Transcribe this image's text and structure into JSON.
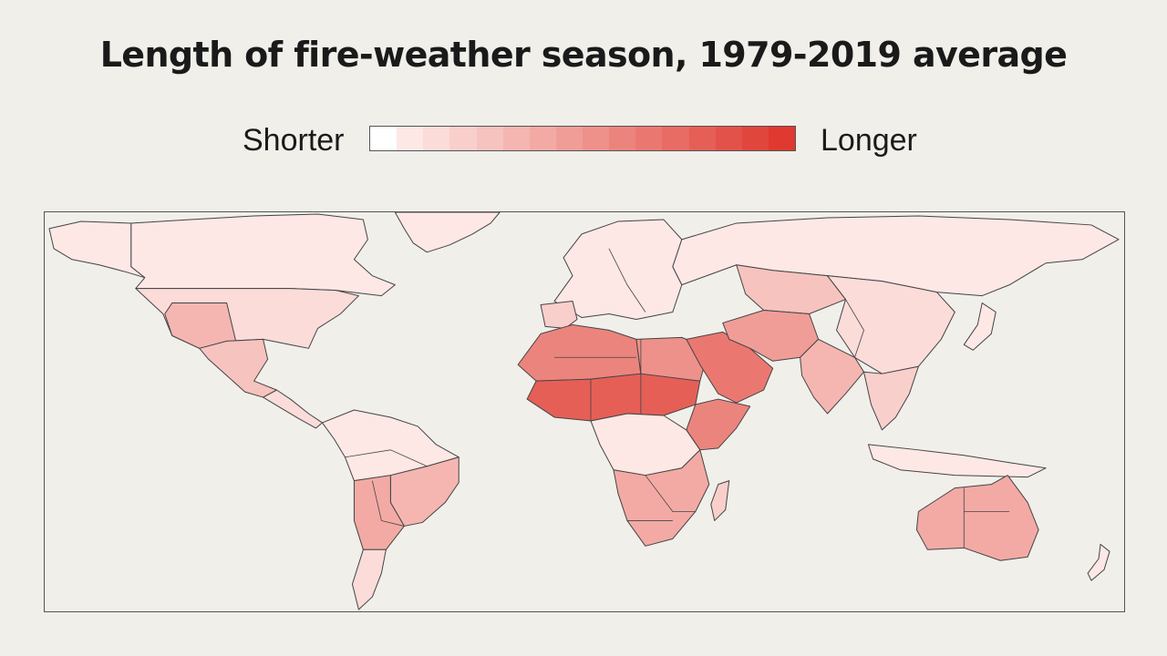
{
  "title": "Length of fire-weather season, 1979-2019 average",
  "legend": {
    "low_label": "Shorter",
    "high_label": "Longer",
    "colors": [
      "#ffffff",
      "#fde8e6",
      "#fbdcd9",
      "#f9cfcc",
      "#f7c3bf",
      "#f5b6b2",
      "#f3aaa5",
      "#f09d98",
      "#ee918b",
      "#ec847e",
      "#ea7871",
      "#e86b64",
      "#e55f57",
      "#e3524a",
      "#e1463d",
      "#df3930"
    ]
  },
  "regions": [
    {
      "id": "greenland",
      "level": 1
    },
    {
      "id": "canada",
      "level": 1
    },
    {
      "id": "alaska",
      "level": 1
    },
    {
      "id": "usa",
      "level": 2
    },
    {
      "id": "us-southwest",
      "level": 5
    },
    {
      "id": "mexico",
      "level": 4
    },
    {
      "id": "central-america",
      "level": 2
    },
    {
      "id": "south-america-north",
      "level": 1
    },
    {
      "id": "brazil-east",
      "level": 5
    },
    {
      "id": "andes-chile",
      "level": 6
    },
    {
      "id": "patagonia",
      "level": 2
    },
    {
      "id": "europe",
      "level": 1
    },
    {
      "id": "iberia",
      "level": 3
    },
    {
      "id": "sahara-west",
      "level": 9
    },
    {
      "id": "sahel",
      "level": 12
    },
    {
      "id": "sahara-east",
      "level": 8
    },
    {
      "id": "horn-of-africa",
      "level": 9
    },
    {
      "id": "central-africa",
      "level": 1
    },
    {
      "id": "southern-africa",
      "level": 6
    },
    {
      "id": "madagascar",
      "level": 3
    },
    {
      "id": "arabia",
      "level": 10
    },
    {
      "id": "iran-pakistan",
      "level": 7
    },
    {
      "id": "central-asia",
      "level": 4
    },
    {
      "id": "siberia",
      "level": 1
    },
    {
      "id": "china",
      "level": 2
    },
    {
      "id": "india",
      "level": 5
    },
    {
      "id": "southeast-asia",
      "level": 3
    },
    {
      "id": "indonesia",
      "level": 1
    },
    {
      "id": "australia",
      "level": 6
    },
    {
      "id": "new-zealand",
      "level": 1
    },
    {
      "id": "japan",
      "level": 1
    }
  ]
}
